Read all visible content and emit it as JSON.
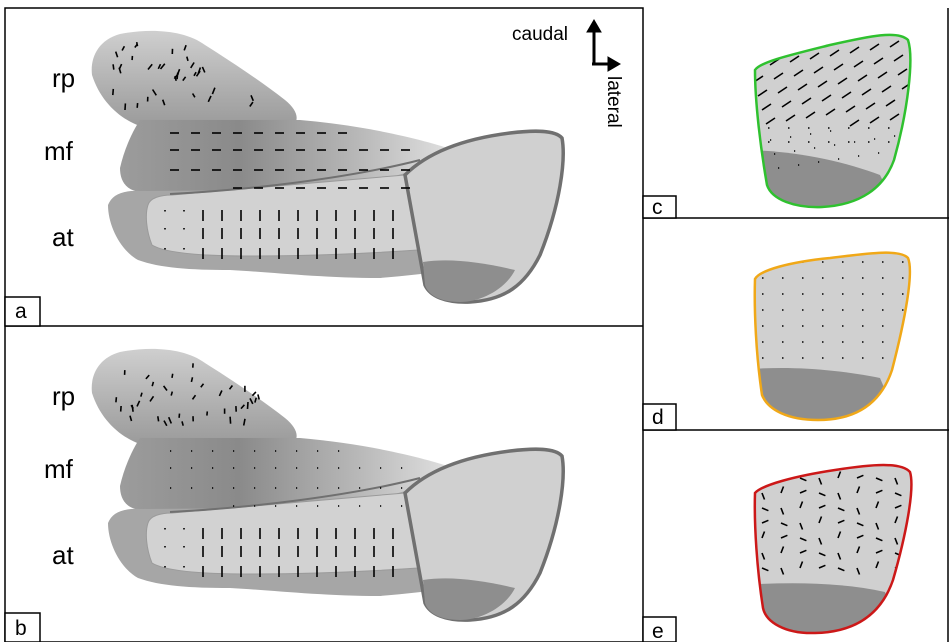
{
  "panels": [
    {
      "id": "a",
      "label": "a"
    },
    {
      "id": "b",
      "label": "b"
    },
    {
      "id": "c",
      "label": "c"
    },
    {
      "id": "d",
      "label": "d"
    },
    {
      "id": "e",
      "label": "e"
    }
  ],
  "regions": {
    "rp": "rp",
    "mf": "mf",
    "at": "at"
  },
  "orientation": {
    "caudal": "caudal",
    "lateral": "lateral"
  },
  "colors": {
    "panel_c_outline": "#2fc12f",
    "panel_d_outline": "#f0a818",
    "panel_e_outline": "#cc1818",
    "light_fill": "#d0d0d0",
    "dark_fill": "#8e8e8e",
    "outline_gray": "#707070"
  }
}
